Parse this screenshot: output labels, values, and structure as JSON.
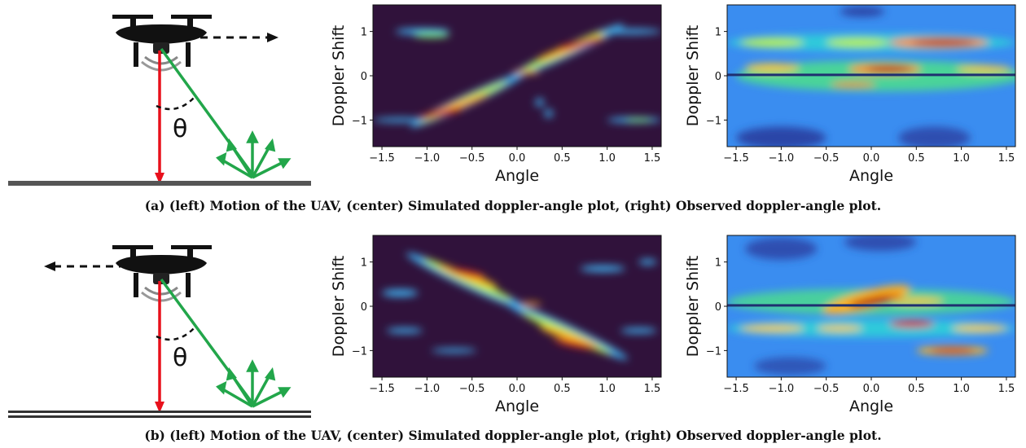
{
  "figure": {
    "rows": [
      {
        "id": "a",
        "caption": "(a) (left) Motion of the UAV, (center) Simulated doppler-angle plot, (right) Observed doppler-angle plot.",
        "uav": {
          "direction": "right",
          "angle_label": "θ"
        }
      },
      {
        "id": "b",
        "caption": "(b) (left) Motion of the UAV, (center) Simulated doppler-angle plot, (right) Observed doppler-angle plot.",
        "uav": {
          "direction": "left",
          "angle_label": "θ"
        }
      }
    ]
  },
  "chart_data": [
    {
      "id": "a-simulated",
      "type": "heatmap",
      "xlabel": "Angle",
      "ylabel": "Doppler Shift",
      "xlim": [
        -1.6,
        1.6
      ],
      "ylim": [
        -1.6,
        1.6
      ],
      "xticks": [
        -1.5,
        -1.0,
        -0.5,
        0.0,
        0.5,
        1.0,
        1.5
      ],
      "xtick_labels": [
        "−1.5",
        "−1.0",
        "−0.5",
        "0.0",
        "0.5",
        "1.0",
        "1.5"
      ],
      "yticks": [
        -1,
        0,
        1
      ],
      "ytick_labels": [
        "−1",
        "0",
        "1"
      ],
      "colormap": "turbo",
      "background": "#30123b"
    },
    {
      "id": "a-observed",
      "type": "heatmap",
      "xlabel": "Angle",
      "ylabel": "Doppler Shift",
      "xlim": [
        -1.6,
        1.6
      ],
      "ylim": [
        -1.6,
        1.6
      ],
      "xticks": [
        -1.5,
        -1.0,
        -0.5,
        0.0,
        0.5,
        1.0,
        1.5
      ],
      "xtick_labels": [
        "−1.5",
        "−1.0",
        "−0.5",
        "0.0",
        "0.5",
        "1.0",
        "1.5"
      ],
      "yticks": [
        -1,
        0,
        1
      ],
      "ytick_labels": [
        "−1",
        "0",
        "1"
      ],
      "colormap": "turbo",
      "background": "#3a8df0"
    },
    {
      "id": "b-simulated",
      "type": "heatmap",
      "xlabel": "Angle",
      "ylabel": "Doppler Shift",
      "xlim": [
        -1.6,
        1.6
      ],
      "ylim": [
        -1.6,
        1.6
      ],
      "xticks": [
        -1.5,
        -1.0,
        -0.5,
        0.0,
        0.5,
        1.0,
        1.5
      ],
      "xtick_labels": [
        "−1.5",
        "−1.0",
        "−0.5",
        "0.0",
        "0.5",
        "1.0",
        "1.5"
      ],
      "yticks": [
        -1,
        0,
        1
      ],
      "ytick_labels": [
        "−1",
        "0",
        "1"
      ],
      "colormap": "turbo",
      "background": "#30123b"
    },
    {
      "id": "b-observed",
      "type": "heatmap",
      "xlabel": "Angle",
      "ylabel": "Doppler Shift",
      "xlim": [
        -1.6,
        1.6
      ],
      "ylim": [
        -1.6,
        1.6
      ],
      "xticks": [
        -1.5,
        -1.0,
        -0.5,
        0.0,
        0.5,
        1.0,
        1.5
      ],
      "xtick_labels": [
        "−1.5",
        "−1.0",
        "−0.5",
        "0.0",
        "0.5",
        "1.0",
        "1.5"
      ],
      "yticks": [
        -1,
        0,
        1
      ],
      "ytick_labels": [
        "−1",
        "0",
        "1"
      ],
      "colormap": "turbo",
      "background": "#3a8df0"
    }
  ]
}
